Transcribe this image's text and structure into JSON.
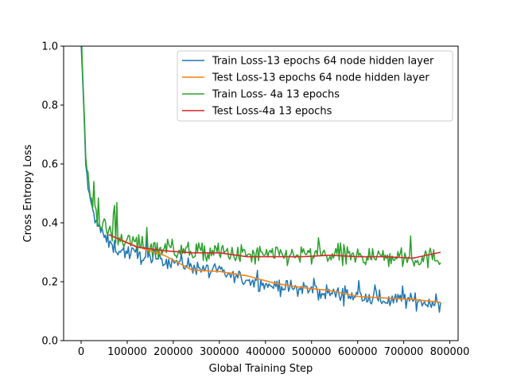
{
  "chart_data": {
    "type": "line",
    "title": "",
    "xlabel": "Global Training Step",
    "ylabel": "Cross Entropy Loss",
    "xlim": [
      -38000,
      818000
    ],
    "ylim": [
      0.0,
      1.0
    ],
    "x_ticks": [
      0,
      100000,
      200000,
      300000,
      400000,
      500000,
      600000,
      700000,
      800000
    ],
    "y_ticks": [
      0.0,
      0.2,
      0.4,
      0.6,
      0.8,
      1.0
    ],
    "grid": false,
    "legend_position": "top-right",
    "series": [
      {
        "name": "Train Loss-13 epochs 64 node hidden layer",
        "color": "#1f77b4",
        "x": [
          0,
          5000,
          10000,
          15000,
          20000,
          30000,
          40000,
          60000,
          80000,
          100000,
          150000,
          200000,
          250000,
          300000,
          350000,
          400000,
          450000,
          500000,
          550000,
          600000,
          650000,
          700000,
          750000,
          780000
        ],
        "y": [
          1.0,
          0.82,
          0.6,
          0.52,
          0.47,
          0.42,
          0.38,
          0.33,
          0.31,
          0.3,
          0.28,
          0.27,
          0.25,
          0.23,
          0.21,
          0.19,
          0.18,
          0.17,
          0.16,
          0.15,
          0.14,
          0.14,
          0.13,
          0.13
        ]
      },
      {
        "name": "Test Loss-13 epochs 64 node hidden layer",
        "color": "#ff7f0e",
        "x": [
          60000,
          120000,
          180000,
          240000,
          300000,
          360000,
          420000,
          480000,
          540000,
          600000,
          660000,
          720000,
          780000
        ],
        "y": [
          0.36,
          0.32,
          0.29,
          0.24,
          0.235,
          0.22,
          0.195,
          0.18,
          0.17,
          0.15,
          0.145,
          0.14,
          0.13
        ]
      },
      {
        "name": "Train Loss- 4a 13 epochs",
        "color": "#2ca02c",
        "x": [
          0,
          5000,
          10000,
          15000,
          20000,
          30000,
          40000,
          60000,
          80000,
          100000,
          150000,
          200000,
          250000,
          300000,
          350000,
          400000,
          450000,
          500000,
          550000,
          600000,
          650000,
          700000,
          750000,
          780000
        ],
        "y": [
          1.0,
          0.85,
          0.62,
          0.55,
          0.5,
          0.44,
          0.4,
          0.37,
          0.35,
          0.34,
          0.32,
          0.31,
          0.3,
          0.3,
          0.29,
          0.29,
          0.29,
          0.29,
          0.29,
          0.285,
          0.285,
          0.28,
          0.28,
          0.28
        ]
      },
      {
        "name": "Test Loss-4a 13 epochs",
        "color": "#d62728",
        "x": [
          60000,
          120000,
          180000,
          240000,
          300000,
          360000,
          420000,
          480000,
          540000,
          600000,
          660000,
          720000,
          780000
        ],
        "y": [
          0.36,
          0.318,
          0.305,
          0.298,
          0.298,
          0.285,
          0.285,
          0.285,
          0.29,
          0.285,
          0.285,
          0.28,
          0.3
        ]
      }
    ]
  }
}
